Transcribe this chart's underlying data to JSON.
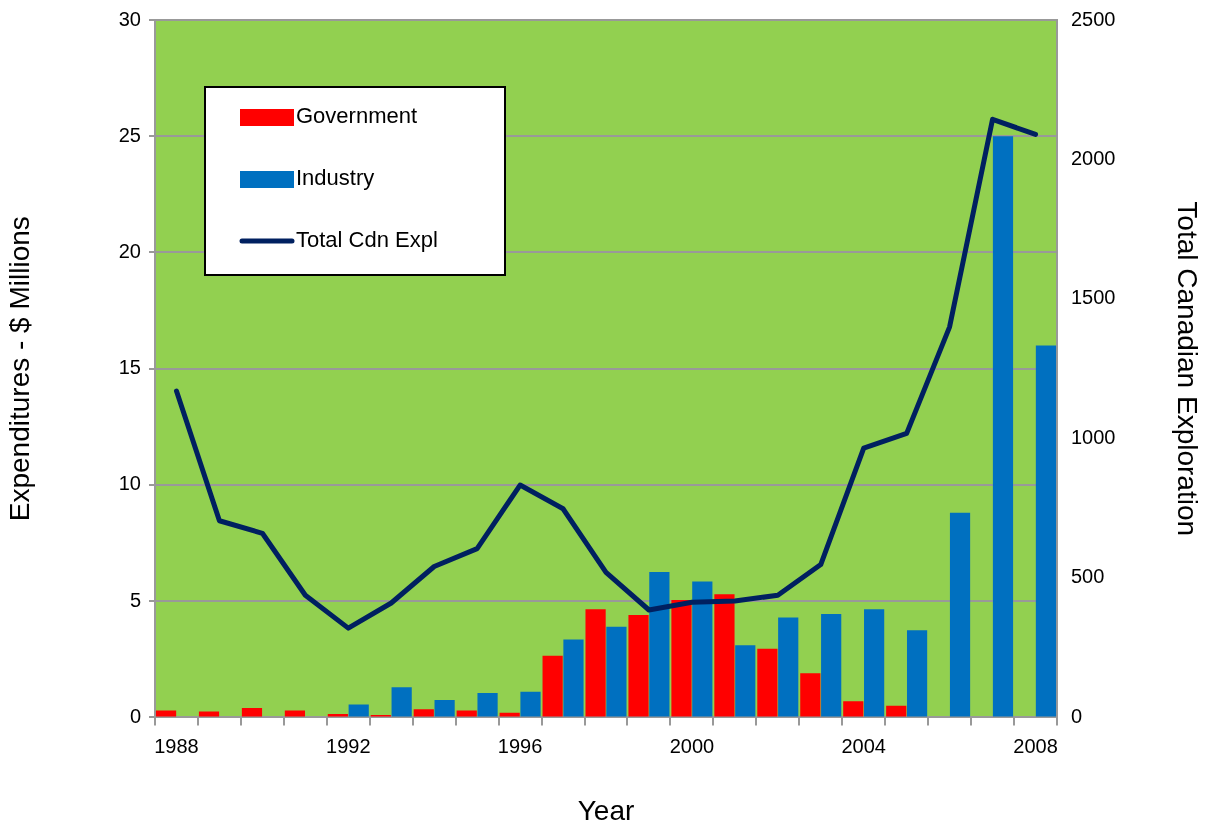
{
  "chart_data": {
    "type": "bar",
    "xlabel": "Year",
    "ylabel": "Expenditures - $ Millions",
    "y2label": "Total Canadian Exploration",
    "categories": [
      "1988",
      null,
      null,
      null,
      "1992",
      null,
      null,
      null,
      "1996",
      null,
      null,
      null,
      "2000",
      null,
      null,
      null,
      "2004",
      null,
      null,
      null,
      "2008"
    ],
    "series": [
      {
        "name": "Government",
        "color": "#ff0000",
        "values": [
          0.3,
          0.25,
          0.4,
          0.3,
          0.15,
          0.1,
          0.35,
          0.3,
          0.2,
          2.65,
          4.65,
          4.4,
          5.05,
          5.3,
          2.95,
          1.9,
          0.7,
          0.5,
          null,
          null,
          null
        ]
      },
      {
        "name": "Industry",
        "color": "#0070c0",
        "values": [
          null,
          null,
          null,
          null,
          0.55,
          1.3,
          0.75,
          1.05,
          1.1,
          3.35,
          3.9,
          6.25,
          5.85,
          3.1,
          4.3,
          4.45,
          4.65,
          3.75,
          8.8,
          25,
          16
        ]
      },
      {
        "name": "Total Cdn Expl",
        "type": "line",
        "axis": "y2",
        "color": "#002060",
        "values": [
          1170,
          705,
          660,
          438,
          320,
          410,
          541,
          605,
          833,
          748,
          520,
          385,
          413,
          417,
          438,
          548,
          965,
          1018,
          1400,
          2144,
          2090
        ]
      }
    ],
    "ylim": [
      0,
      30
    ],
    "yticks": [
      0,
      5,
      10,
      15,
      20,
      25,
      30
    ],
    "y2lim": [
      0,
      2500
    ],
    "y2ticks": [
      0,
      500,
      1000,
      1500,
      2000,
      2500
    ],
    "grid": "y",
    "legend": "top left",
    "marker": "none",
    "line_style": "solid"
  }
}
